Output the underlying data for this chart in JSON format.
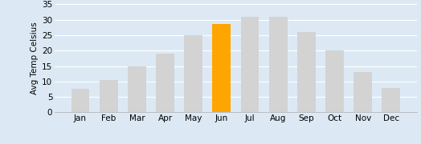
{
  "categories": [
    "Jan",
    "Feb",
    "Mar",
    "Apr",
    "May",
    "Jun",
    "Jul",
    "Aug",
    "Sep",
    "Oct",
    "Nov",
    "Dec"
  ],
  "values": [
    7.5,
    10.5,
    15,
    19,
    25,
    28.5,
    31,
    31,
    26,
    20,
    13,
    8
  ],
  "bar_colors": [
    "#d3d3d3",
    "#d3d3d3",
    "#d3d3d3",
    "#d3d3d3",
    "#d3d3d3",
    "#FFA500",
    "#d3d3d3",
    "#d3d3d3",
    "#d3d3d3",
    "#d3d3d3",
    "#d3d3d3",
    "#d3d3d3"
  ],
  "ylabel": "Avg Temp Celsius",
  "ylim": [
    0,
    35
  ],
  "yticks": [
    0,
    5,
    10,
    15,
    20,
    25,
    30,
    35
  ],
  "background_color": "#dce9f5",
  "plot_area_color": "#dce9f5",
  "bar_edge_color": "none",
  "grid_color": "#ffffff",
  "tick_fontsize": 7.5,
  "ylabel_fontsize": 7.5,
  "bar_width": 0.65
}
